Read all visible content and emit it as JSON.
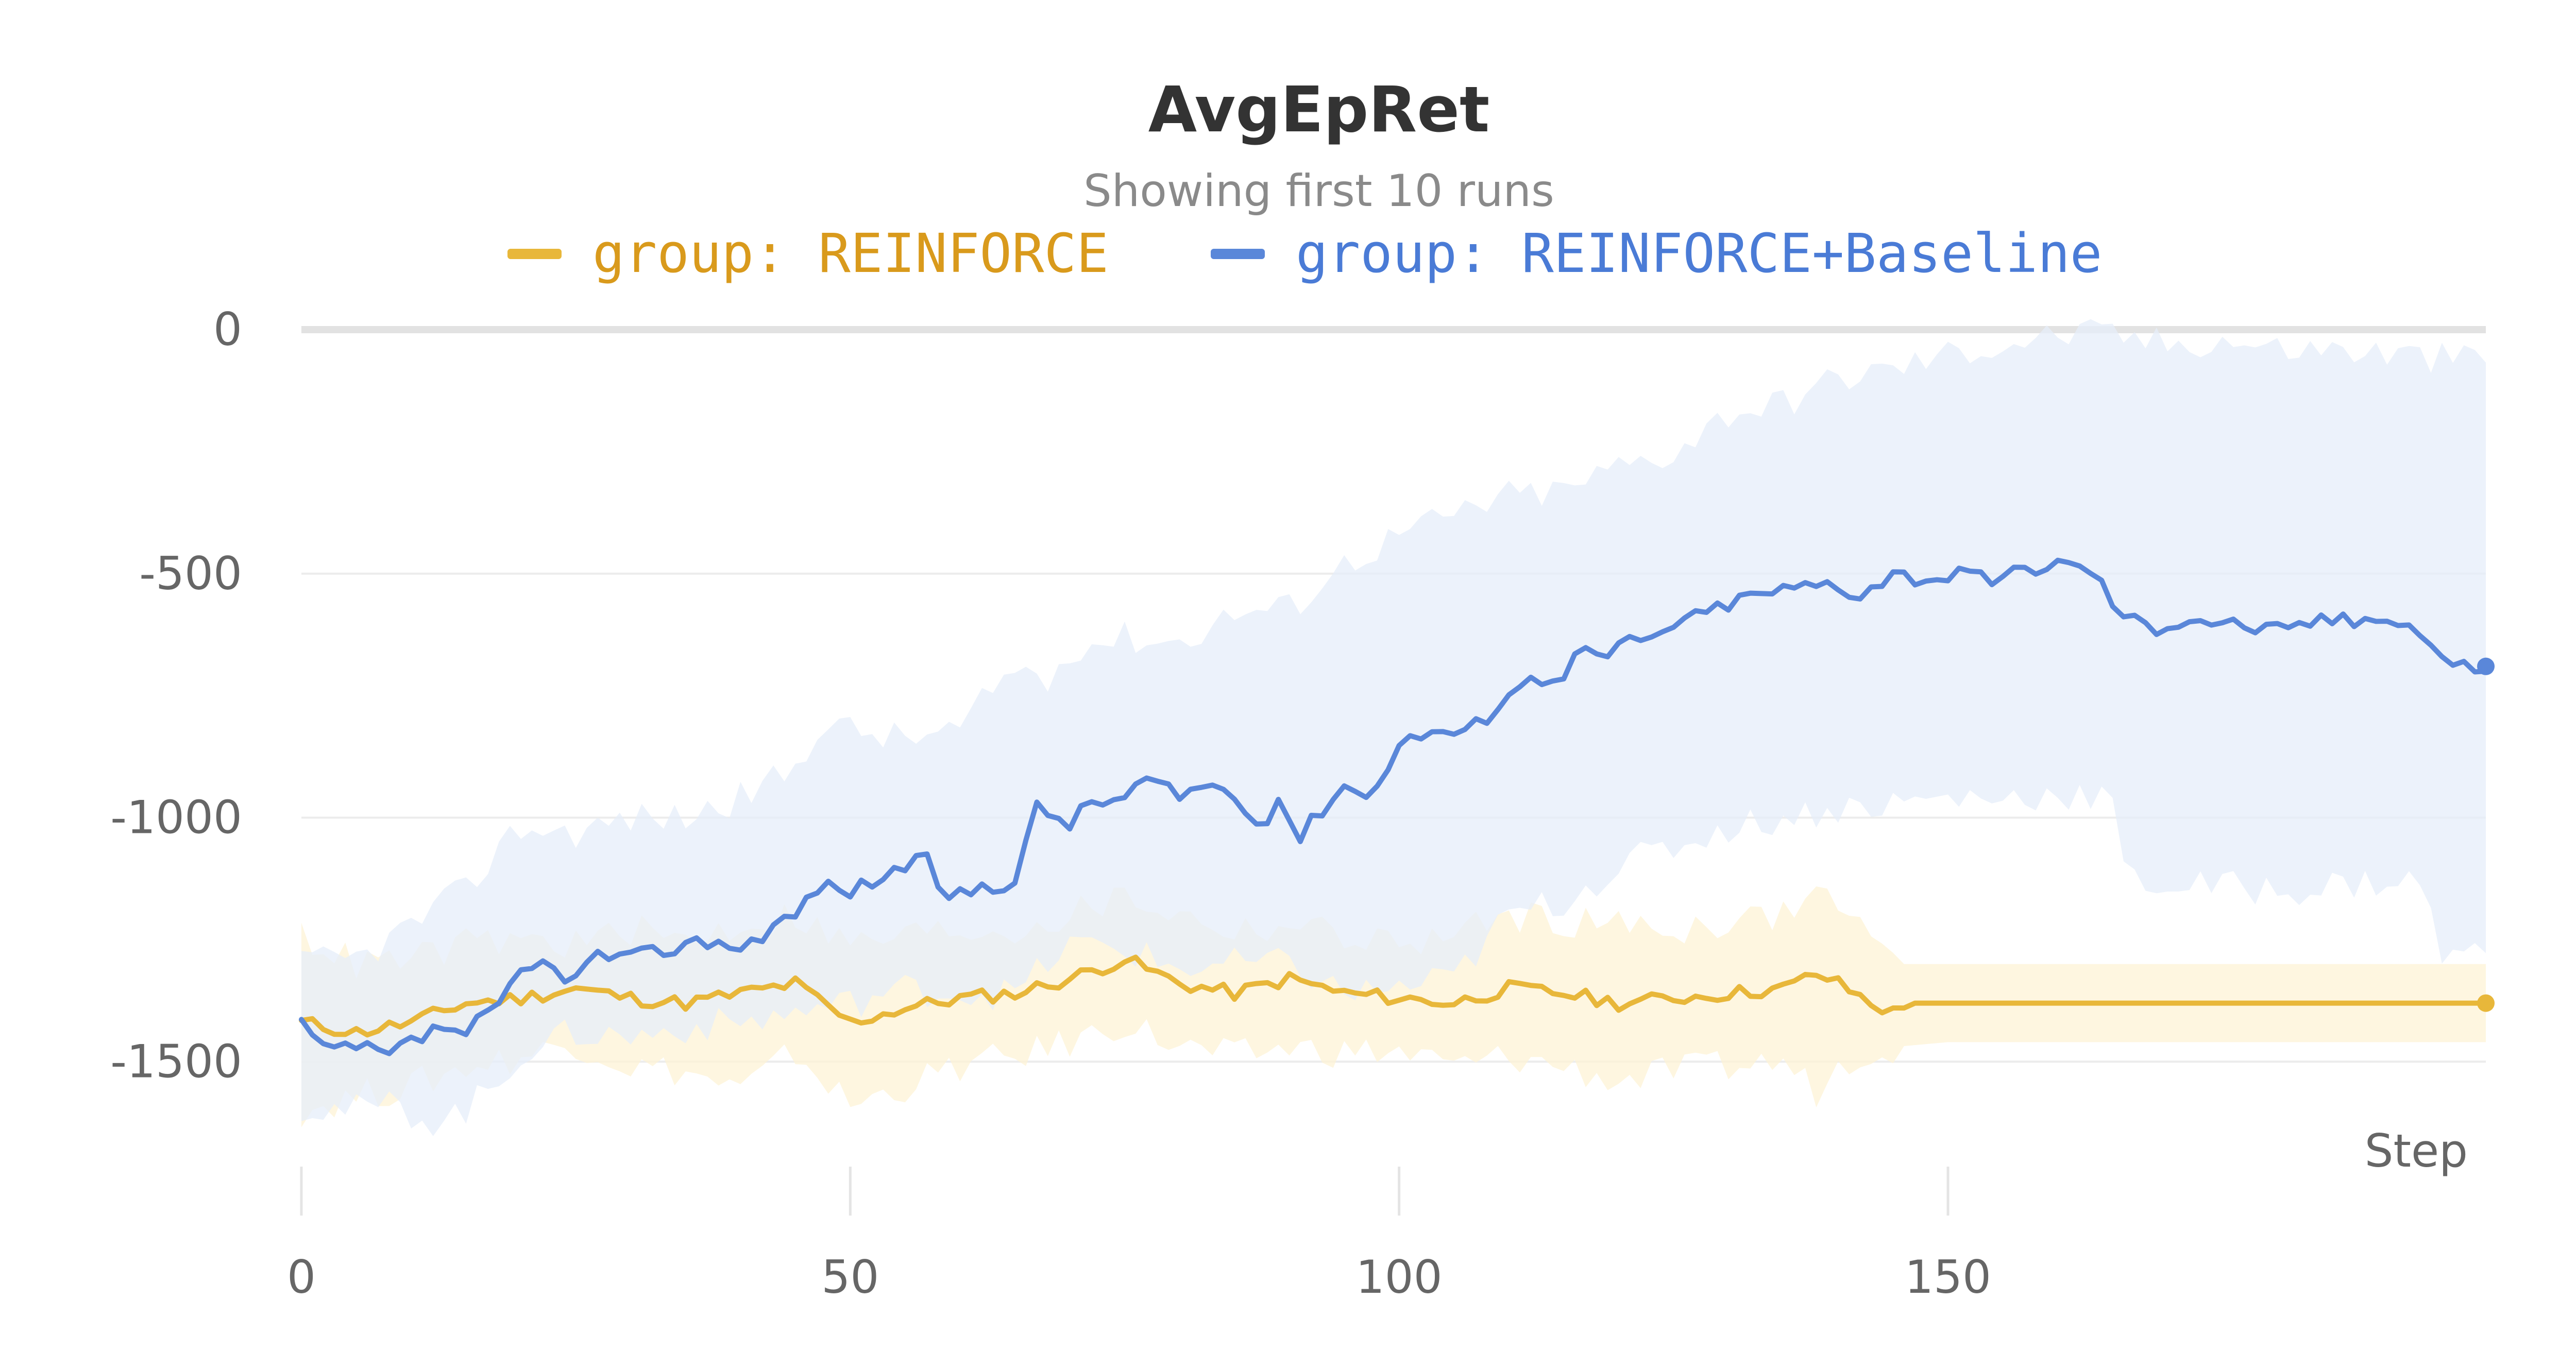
{
  "chart_data": {
    "type": "line",
    "title": "AvgEpRet",
    "subtitle": "Showing first 10 runs",
    "xlabel": "Step",
    "ylabel": "",
    "xlim": [
      0,
      199
    ],
    "ylim": [
      -1620,
      0
    ],
    "x_ticks": [
      0,
      50,
      100,
      150
    ],
    "y_ticks": [
      0,
      -500,
      -1000,
      -1500
    ],
    "grid": true,
    "legend_position": "top",
    "series": [
      {
        "name": "group: REINFORCE",
        "color": "#e8b73a",
        "band_color": "#fdf3d6",
        "mean": [
          [
            0,
            -1420
          ],
          [
            5,
            -1440
          ],
          [
            10,
            -1420
          ],
          [
            15,
            -1380
          ],
          [
            20,
            -1370
          ],
          [
            25,
            -1350
          ],
          [
            30,
            -1370
          ],
          [
            35,
            -1380
          ],
          [
            40,
            -1360
          ],
          [
            45,
            -1340
          ],
          [
            50,
            -1420
          ],
          [
            55,
            -1390
          ],
          [
            60,
            -1370
          ],
          [
            65,
            -1360
          ],
          [
            70,
            -1330
          ],
          [
            75,
            -1290
          ],
          [
            80,
            -1340
          ],
          [
            85,
            -1360
          ],
          [
            90,
            -1330
          ],
          [
            95,
            -1360
          ],
          [
            100,
            -1370
          ],
          [
            105,
            -1380
          ],
          [
            110,
            -1350
          ],
          [
            115,
            -1360
          ],
          [
            120,
            -1380
          ],
          [
            125,
            -1370
          ],
          [
            130,
            -1360
          ],
          [
            135,
            -1350
          ],
          [
            138,
            -1320
          ],
          [
            140,
            -1340
          ],
          [
            143,
            -1380
          ],
          [
            145,
            -1400
          ],
          [
            147,
            -1380
          ],
          [
            150,
            -1380
          ],
          [
            199,
            -1380
          ]
        ],
        "upper": [
          [
            0,
            -1240
          ],
          [
            5,
            -1300
          ],
          [
            10,
            -1290
          ],
          [
            15,
            -1260
          ],
          [
            20,
            -1250
          ],
          [
            25,
            -1260
          ],
          [
            30,
            -1230
          ],
          [
            35,
            -1250
          ],
          [
            40,
            -1220
          ],
          [
            45,
            -1200
          ],
          [
            50,
            -1260
          ],
          [
            55,
            -1240
          ],
          [
            60,
            -1230
          ],
          [
            65,
            -1230
          ],
          [
            70,
            -1200
          ],
          [
            75,
            -1160
          ],
          [
            80,
            -1200
          ],
          [
            85,
            -1230
          ],
          [
            90,
            -1220
          ],
          [
            95,
            -1240
          ],
          [
            100,
            -1260
          ],
          [
            105,
            -1240
          ],
          [
            110,
            -1200
          ],
          [
            115,
            -1210
          ],
          [
            120,
            -1220
          ],
          [
            125,
            -1230
          ],
          [
            130,
            -1210
          ],
          [
            135,
            -1200
          ],
          [
            138,
            -1150
          ],
          [
            140,
            -1170
          ],
          [
            143,
            -1250
          ],
          [
            145,
            -1300
          ],
          [
            150,
            -1300
          ],
          [
            199,
            -1300
          ]
        ],
        "lower": [
          [
            0,
            -1600
          ],
          [
            5,
            -1570
          ],
          [
            10,
            -1550
          ],
          [
            15,
            -1510
          ],
          [
            20,
            -1490
          ],
          [
            25,
            -1460
          ],
          [
            30,
            -1510
          ],
          [
            35,
            -1520
          ],
          [
            40,
            -1560
          ],
          [
            45,
            -1480
          ],
          [
            50,
            -1590
          ],
          [
            55,
            -1550
          ],
          [
            60,
            -1510
          ],
          [
            65,
            -1490
          ],
          [
            70,
            -1460
          ],
          [
            75,
            -1420
          ],
          [
            80,
            -1470
          ],
          [
            85,
            -1490
          ],
          [
            90,
            -1470
          ],
          [
            95,
            -1480
          ],
          [
            100,
            -1480
          ],
          [
            105,
            -1510
          ],
          [
            110,
            -1490
          ],
          [
            115,
            -1510
          ],
          [
            120,
            -1540
          ],
          [
            125,
            -1520
          ],
          [
            130,
            -1510
          ],
          [
            135,
            -1500
          ],
          [
            138,
            -1560
          ],
          [
            140,
            -1510
          ],
          [
            143,
            -1470
          ],
          [
            145,
            -1470
          ],
          [
            150,
            -1460
          ],
          [
            199,
            -1460
          ]
        ]
      },
      {
        "name": "group: REINFORCE+Baseline",
        "color": "#5a87d9",
        "band_color": "#e6eefa",
        "mean": [
          [
            0,
            -1420
          ],
          [
            2,
            -1480
          ],
          [
            5,
            -1470
          ],
          [
            8,
            -1490
          ],
          [
            10,
            -1460
          ],
          [
            13,
            -1430
          ],
          [
            15,
            -1440
          ],
          [
            18,
            -1390
          ],
          [
            20,
            -1320
          ],
          [
            22,
            -1300
          ],
          [
            25,
            -1330
          ],
          [
            27,
            -1280
          ],
          [
            30,
            -1290
          ],
          [
            33,
            -1270
          ],
          [
            35,
            -1260
          ],
          [
            38,
            -1250
          ],
          [
            40,
            -1270
          ],
          [
            43,
            -1220
          ],
          [
            45,
            -1200
          ],
          [
            47,
            -1140
          ],
          [
            50,
            -1150
          ],
          [
            52,
            -1130
          ],
          [
            55,
            -1100
          ],
          [
            57,
            -1090
          ],
          [
            59,
            -1170
          ],
          [
            62,
            -1140
          ],
          [
            65,
            -1130
          ],
          [
            67,
            -980
          ],
          [
            70,
            -1010
          ],
          [
            72,
            -970
          ],
          [
            75,
            -960
          ],
          [
            77,
            -920
          ],
          [
            80,
            -960
          ],
          [
            82,
            -930
          ],
          [
            85,
            -950
          ],
          [
            87,
            -1030
          ],
          [
            89,
            -960
          ],
          [
            91,
            -1040
          ],
          [
            93,
            -980
          ],
          [
            95,
            -930
          ],
          [
            97,
            -960
          ],
          [
            100,
            -850
          ],
          [
            103,
            -820
          ],
          [
            106,
            -830
          ],
          [
            108,
            -790
          ],
          [
            110,
            -740
          ],
          [
            112,
            -720
          ],
          [
            115,
            -700
          ],
          [
            117,
            -650
          ],
          [
            119,
            -680
          ],
          [
            121,
            -630
          ],
          [
            123,
            -640
          ],
          [
            125,
            -600
          ],
          [
            127,
            -590
          ],
          [
            130,
            -560
          ],
          [
            133,
            -540
          ],
          [
            136,
            -530
          ],
          [
            139,
            -520
          ],
          [
            142,
            -540
          ],
          [
            145,
            -500
          ],
          [
            148,
            -510
          ],
          [
            151,
            -500
          ],
          [
            154,
            -520
          ],
          [
            157,
            -490
          ],
          [
            160,
            -480
          ],
          [
            163,
            -490
          ],
          [
            166,
            -590
          ],
          [
            169,
            -610
          ],
          [
            172,
            -590
          ],
          [
            175,
            -600
          ],
          [
            178,
            -610
          ],
          [
            181,
            -620
          ],
          [
            184,
            -590
          ],
          [
            187,
            -600
          ],
          [
            190,
            -580
          ],
          [
            193,
            -620
          ],
          [
            196,
            -690
          ],
          [
            199,
            -690
          ]
        ],
        "upper": [
          [
            0,
            -1300
          ],
          [
            5,
            -1290
          ],
          [
            8,
            -1250
          ],
          [
            12,
            -1190
          ],
          [
            15,
            -1150
          ],
          [
            18,
            -1060
          ],
          [
            20,
            -1020
          ],
          [
            25,
            -1030
          ],
          [
            30,
            -1000
          ],
          [
            35,
            -1000
          ],
          [
            40,
            -960
          ],
          [
            45,
            -900
          ],
          [
            47,
            -810
          ],
          [
            50,
            -820
          ],
          [
            55,
            -840
          ],
          [
            60,
            -820
          ],
          [
            65,
            -690
          ],
          [
            68,
            -720
          ],
          [
            70,
            -650
          ],
          [
            75,
            -630
          ],
          [
            80,
            -640
          ],
          [
            85,
            -580
          ],
          [
            90,
            -570
          ],
          [
            95,
            -480
          ],
          [
            100,
            -420
          ],
          [
            105,
            -380
          ],
          [
            110,
            -340
          ],
          [
            115,
            -330
          ],
          [
            120,
            -280
          ],
          [
            125,
            -250
          ],
          [
            130,
            -170
          ],
          [
            135,
            -150
          ],
          [
            140,
            -100
          ],
          [
            145,
            -80
          ],
          [
            150,
            -50
          ],
          [
            155,
            -30
          ],
          [
            160,
            -10
          ],
          [
            165,
            -10
          ],
          [
            170,
            -30
          ],
          [
            175,
            -20
          ],
          [
            180,
            -40
          ],
          [
            185,
            -40
          ],
          [
            190,
            -50
          ],
          [
            195,
            -60
          ],
          [
            199,
            -60
          ]
        ],
        "lower": [
          [
            0,
            -1590
          ],
          [
            5,
            -1600
          ],
          [
            8,
            -1590
          ],
          [
            12,
            -1620
          ],
          [
            15,
            -1600
          ],
          [
            18,
            -1540
          ],
          [
            20,
            -1480
          ],
          [
            25,
            -1440
          ],
          [
            30,
            -1450
          ],
          [
            35,
            -1430
          ],
          [
            40,
            -1420
          ],
          [
            45,
            -1400
          ],
          [
            50,
            -1380
          ],
          [
            55,
            -1350
          ],
          [
            60,
            -1360
          ],
          [
            65,
            -1360
          ],
          [
            70,
            -1260
          ],
          [
            75,
            -1270
          ],
          [
            80,
            -1310
          ],
          [
            85,
            -1300
          ],
          [
            90,
            -1300
          ],
          [
            95,
            -1360
          ],
          [
            100,
            -1350
          ],
          [
            105,
            -1330
          ],
          [
            110,
            -1200
          ],
          [
            115,
            -1170
          ],
          [
            120,
            -1100
          ],
          [
            125,
            -1060
          ],
          [
            130,
            -1020
          ],
          [
            135,
            -1000
          ],
          [
            140,
            -980
          ],
          [
            145,
            -970
          ],
          [
            150,
            -960
          ],
          [
            155,
            -960
          ],
          [
            160,
            -950
          ],
          [
            165,
            -960
          ],
          [
            166,
            -1120
          ],
          [
            170,
            -1140
          ],
          [
            175,
            -1140
          ],
          [
            180,
            -1150
          ],
          [
            185,
            -1140
          ],
          [
            190,
            -1130
          ],
          [
            193,
            -1130
          ],
          [
            195,
            -1280
          ],
          [
            199,
            -1280
          ]
        ]
      }
    ]
  }
}
